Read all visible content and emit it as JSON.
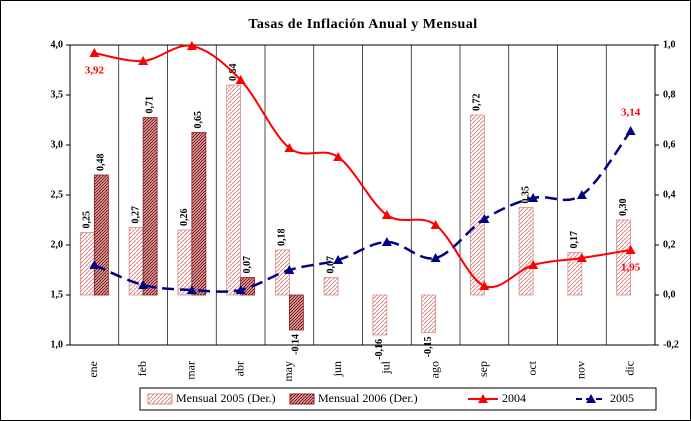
{
  "chart_data": {
    "type": "bar",
    "title": "Tasas de Inflación Anual y Mensual",
    "categories": [
      "ene",
      "feb",
      "mar",
      "abr",
      "may",
      "jun",
      "jul",
      "ago",
      "sep",
      "oct",
      "nov",
      "dic"
    ],
    "ylim": [
      1.0,
      4.0
    ],
    "yticks": [
      {
        "value": 1.0,
        "label": "1,0"
      },
      {
        "value": 1.5,
        "label": "1,5"
      },
      {
        "value": 2.0,
        "label": "2,0"
      },
      {
        "value": 2.5,
        "label": "2,5"
      },
      {
        "value": 3.0,
        "label": "3,0"
      },
      {
        "value": 3.5,
        "label": "3,5"
      },
      {
        "value": 4.0,
        "label": "4,0"
      }
    ],
    "y2lim": [
      -0.2,
      1.0
    ],
    "y2ticks": [
      {
        "value": -0.2,
        "label": "-0,2"
      },
      {
        "value": 0.0,
        "label": "0,0"
      },
      {
        "value": 0.2,
        "label": "0,2"
      },
      {
        "value": 0.4,
        "label": "0,4"
      },
      {
        "value": 0.6,
        "label": "0,6"
      },
      {
        "value": 0.8,
        "label": "0,8"
      },
      {
        "value": 1.0,
        "label": "1,0"
      }
    ],
    "series": [
      {
        "name": "Mensual 2005 (Der.)",
        "type": "bar",
        "axis": "y2",
        "color": "#d98c8c",
        "values": [
          0.25,
          0.27,
          0.26,
          0.84,
          0.18,
          0.07,
          -0.16,
          -0.15,
          0.72,
          0.35,
          0.17,
          0.3
        ],
        "value_labels": [
          "0,25",
          "0,27",
          "0,26",
          "0,84",
          "0,18",
          "0,07",
          "-0,16",
          "-0,15",
          "0,72",
          "0,35",
          "0,17",
          "0,30"
        ]
      },
      {
        "name": "Mensual 2006 (Der.)",
        "type": "bar",
        "axis": "y2",
        "color": "#8b1a1a",
        "values": [
          0.48,
          0.71,
          0.65,
          0.07,
          -0.14,
          null,
          null,
          null,
          null,
          null,
          null,
          null
        ],
        "value_labels": [
          "0,48",
          "0,71",
          "0,65",
          "0,07",
          "-0,14",
          null,
          null,
          null,
          null,
          null,
          null,
          null
        ]
      },
      {
        "name": "2004",
        "type": "line",
        "color": "#ff0000",
        "dash": false,
        "values": [
          3.92,
          3.84,
          3.99,
          3.65,
          2.97,
          2.88,
          2.3,
          2.2,
          1.59,
          1.8,
          1.87,
          1.95
        ],
        "value_labels": [
          "3,92",
          null,
          null,
          null,
          null,
          null,
          null,
          null,
          null,
          null,
          null,
          "1,95"
        ]
      },
      {
        "name": "2005",
        "type": "line",
        "color": "#000080",
        "dash": true,
        "values": [
          1.8,
          1.6,
          1.55,
          1.55,
          1.75,
          1.85,
          2.03,
          1.87,
          2.26,
          2.47,
          2.5,
          3.14
        ],
        "value_labels": [
          null,
          null,
          null,
          null,
          null,
          null,
          null,
          null,
          null,
          null,
          null,
          "3,14"
        ]
      }
    ]
  }
}
